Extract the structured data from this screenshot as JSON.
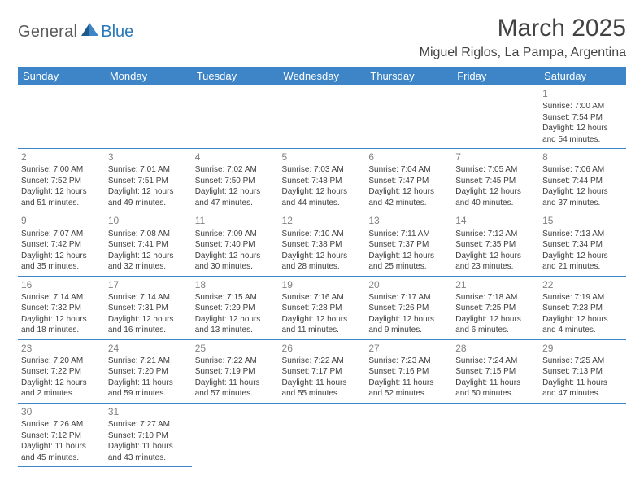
{
  "logo": {
    "text1": "General",
    "text2": "Blue",
    "color1": "#5a5a5a",
    "color2": "#2a78b8"
  },
  "title": "March 2025",
  "location": "Miguel Riglos, La Pampa, Argentina",
  "header_bg": "#3d85c6",
  "header_fg": "#ffffff",
  "rule_color": "#3d85c6",
  "day_headers": [
    "Sunday",
    "Monday",
    "Tuesday",
    "Wednesday",
    "Thursday",
    "Friday",
    "Saturday"
  ],
  "weeks": [
    [
      null,
      null,
      null,
      null,
      null,
      null,
      {
        "n": "1",
        "sr": "Sunrise: 7:00 AM",
        "ss": "Sunset: 7:54 PM",
        "d1": "Daylight: 12 hours",
        "d2": "and 54 minutes."
      }
    ],
    [
      {
        "n": "2",
        "sr": "Sunrise: 7:00 AM",
        "ss": "Sunset: 7:52 PM",
        "d1": "Daylight: 12 hours",
        "d2": "and 51 minutes."
      },
      {
        "n": "3",
        "sr": "Sunrise: 7:01 AM",
        "ss": "Sunset: 7:51 PM",
        "d1": "Daylight: 12 hours",
        "d2": "and 49 minutes."
      },
      {
        "n": "4",
        "sr": "Sunrise: 7:02 AM",
        "ss": "Sunset: 7:50 PM",
        "d1": "Daylight: 12 hours",
        "d2": "and 47 minutes."
      },
      {
        "n": "5",
        "sr": "Sunrise: 7:03 AM",
        "ss": "Sunset: 7:48 PM",
        "d1": "Daylight: 12 hours",
        "d2": "and 44 minutes."
      },
      {
        "n": "6",
        "sr": "Sunrise: 7:04 AM",
        "ss": "Sunset: 7:47 PM",
        "d1": "Daylight: 12 hours",
        "d2": "and 42 minutes."
      },
      {
        "n": "7",
        "sr": "Sunrise: 7:05 AM",
        "ss": "Sunset: 7:45 PM",
        "d1": "Daylight: 12 hours",
        "d2": "and 40 minutes."
      },
      {
        "n": "8",
        "sr": "Sunrise: 7:06 AM",
        "ss": "Sunset: 7:44 PM",
        "d1": "Daylight: 12 hours",
        "d2": "and 37 minutes."
      }
    ],
    [
      {
        "n": "9",
        "sr": "Sunrise: 7:07 AM",
        "ss": "Sunset: 7:42 PM",
        "d1": "Daylight: 12 hours",
        "d2": "and 35 minutes."
      },
      {
        "n": "10",
        "sr": "Sunrise: 7:08 AM",
        "ss": "Sunset: 7:41 PM",
        "d1": "Daylight: 12 hours",
        "d2": "and 32 minutes."
      },
      {
        "n": "11",
        "sr": "Sunrise: 7:09 AM",
        "ss": "Sunset: 7:40 PM",
        "d1": "Daylight: 12 hours",
        "d2": "and 30 minutes."
      },
      {
        "n": "12",
        "sr": "Sunrise: 7:10 AM",
        "ss": "Sunset: 7:38 PM",
        "d1": "Daylight: 12 hours",
        "d2": "and 28 minutes."
      },
      {
        "n": "13",
        "sr": "Sunrise: 7:11 AM",
        "ss": "Sunset: 7:37 PM",
        "d1": "Daylight: 12 hours",
        "d2": "and 25 minutes."
      },
      {
        "n": "14",
        "sr": "Sunrise: 7:12 AM",
        "ss": "Sunset: 7:35 PM",
        "d1": "Daylight: 12 hours",
        "d2": "and 23 minutes."
      },
      {
        "n": "15",
        "sr": "Sunrise: 7:13 AM",
        "ss": "Sunset: 7:34 PM",
        "d1": "Daylight: 12 hours",
        "d2": "and 21 minutes."
      }
    ],
    [
      {
        "n": "16",
        "sr": "Sunrise: 7:14 AM",
        "ss": "Sunset: 7:32 PM",
        "d1": "Daylight: 12 hours",
        "d2": "and 18 minutes."
      },
      {
        "n": "17",
        "sr": "Sunrise: 7:14 AM",
        "ss": "Sunset: 7:31 PM",
        "d1": "Daylight: 12 hours",
        "d2": "and 16 minutes."
      },
      {
        "n": "18",
        "sr": "Sunrise: 7:15 AM",
        "ss": "Sunset: 7:29 PM",
        "d1": "Daylight: 12 hours",
        "d2": "and 13 minutes."
      },
      {
        "n": "19",
        "sr": "Sunrise: 7:16 AM",
        "ss": "Sunset: 7:28 PM",
        "d1": "Daylight: 12 hours",
        "d2": "and 11 minutes."
      },
      {
        "n": "20",
        "sr": "Sunrise: 7:17 AM",
        "ss": "Sunset: 7:26 PM",
        "d1": "Daylight: 12 hours",
        "d2": "and 9 minutes."
      },
      {
        "n": "21",
        "sr": "Sunrise: 7:18 AM",
        "ss": "Sunset: 7:25 PM",
        "d1": "Daylight: 12 hours",
        "d2": "and 6 minutes."
      },
      {
        "n": "22",
        "sr": "Sunrise: 7:19 AM",
        "ss": "Sunset: 7:23 PM",
        "d1": "Daylight: 12 hours",
        "d2": "and 4 minutes."
      }
    ],
    [
      {
        "n": "23",
        "sr": "Sunrise: 7:20 AM",
        "ss": "Sunset: 7:22 PM",
        "d1": "Daylight: 12 hours",
        "d2": "and 2 minutes."
      },
      {
        "n": "24",
        "sr": "Sunrise: 7:21 AM",
        "ss": "Sunset: 7:20 PM",
        "d1": "Daylight: 11 hours",
        "d2": "and 59 minutes."
      },
      {
        "n": "25",
        "sr": "Sunrise: 7:22 AM",
        "ss": "Sunset: 7:19 PM",
        "d1": "Daylight: 11 hours",
        "d2": "and 57 minutes."
      },
      {
        "n": "26",
        "sr": "Sunrise: 7:22 AM",
        "ss": "Sunset: 7:17 PM",
        "d1": "Daylight: 11 hours",
        "d2": "and 55 minutes."
      },
      {
        "n": "27",
        "sr": "Sunrise: 7:23 AM",
        "ss": "Sunset: 7:16 PM",
        "d1": "Daylight: 11 hours",
        "d2": "and 52 minutes."
      },
      {
        "n": "28",
        "sr": "Sunrise: 7:24 AM",
        "ss": "Sunset: 7:15 PM",
        "d1": "Daylight: 11 hours",
        "d2": "and 50 minutes."
      },
      {
        "n": "29",
        "sr": "Sunrise: 7:25 AM",
        "ss": "Sunset: 7:13 PM",
        "d1": "Daylight: 11 hours",
        "d2": "and 47 minutes."
      }
    ],
    [
      {
        "n": "30",
        "sr": "Sunrise: 7:26 AM",
        "ss": "Sunset: 7:12 PM",
        "d1": "Daylight: 11 hours",
        "d2": "and 45 minutes."
      },
      {
        "n": "31",
        "sr": "Sunrise: 7:27 AM",
        "ss": "Sunset: 7:10 PM",
        "d1": "Daylight: 11 hours",
        "d2": "and 43 minutes."
      },
      null,
      null,
      null,
      null,
      null
    ]
  ]
}
